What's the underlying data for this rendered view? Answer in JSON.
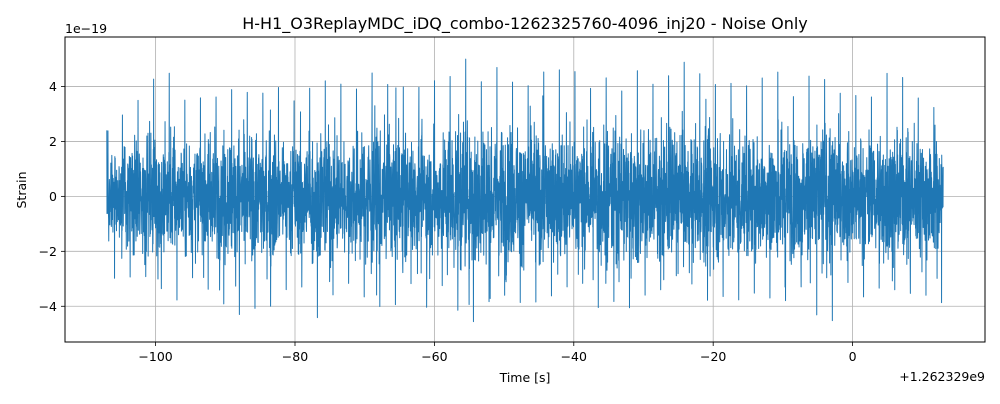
{
  "chart_data": {
    "type": "line",
    "title": "H-H1_O3ReplayMDC_iDQ_combo-1262325760-4096_inj20 - Noise Only",
    "xlabel": "Time [s]",
    "ylabel": "Strain",
    "x_offset_label": "+1.262329e9",
    "y_scale_label": "1e−19",
    "xlim": [
      -113,
      19
    ],
    "ylim": [
      -5.3,
      5.8
    ],
    "xticks": [
      -100,
      -80,
      -60,
      -40,
      -20,
      0
    ],
    "xtick_labels": [
      "−100",
      "−80",
      "−60",
      "−40",
      "−20",
      "0"
    ],
    "yticks": [
      -4,
      -2,
      0,
      2,
      4
    ],
    "ytick_labels": [
      "−4",
      "−2",
      "0",
      "2",
      "4"
    ],
    "grid": true,
    "series": [
      {
        "color": "#1f77b4",
        "x_range": [
          -107,
          13
        ],
        "envelope_upper": [
          2.4,
          2.9,
          3.4,
          3.8,
          5.1,
          3.8,
          3.3,
          3.7,
          3.6,
          3.9,
          3.8,
          3.6,
          4.4,
          3.0,
          4.1,
          3.8,
          4.4,
          4.0,
          3.9,
          4.5,
          4.1,
          3.9,
          4.2,
          3.6,
          4.8,
          4.1,
          5.3,
          4.0,
          4.7,
          4.2,
          3.8,
          4.8,
          4.0,
          5.3,
          4.0,
          3.9,
          4.4,
          3.8,
          4.6,
          4.1,
          4.0,
          5.3,
          4.3,
          4.6,
          3.8,
          4.2,
          4.0,
          4.3,
          4.7,
          3.4,
          4.3,
          4.5,
          4.0,
          3.6,
          3.7,
          3.6,
          4.5,
          4.4,
          3.6,
          3.5,
          2.7
        ],
        "envelope_lower": [
          -3.2,
          -2.8,
          -3.0,
          -2.9,
          -3.4,
          -3.8,
          -2.9,
          -3.3,
          -3.6,
          -4.4,
          -4.2,
          -4.0,
          -4.0,
          -3.3,
          -3.3,
          -4.5,
          -3.7,
          -3.2,
          -3.1,
          -4.3,
          -3.8,
          -4.0,
          -3.0,
          -4.1,
          -3.2,
          -4.0,
          -4.8,
          -4.0,
          -3.6,
          -3.6,
          -4.0,
          -3.8,
          -3.6,
          -3.3,
          -3.0,
          -4.2,
          -3.6,
          -4.2,
          -3.9,
          -3.4,
          -3.4,
          -2.8,
          -3.2,
          -3.8,
          -3.6,
          -3.8,
          -3.7,
          -3.3,
          -4.0,
          -3.7,
          -3.2,
          -4.4,
          -4.6,
          -3.0,
          -3.8,
          -3.3,
          -3.4,
          -3.4,
          -3.6,
          -3.6,
          -3.9
        ]
      }
    ]
  }
}
